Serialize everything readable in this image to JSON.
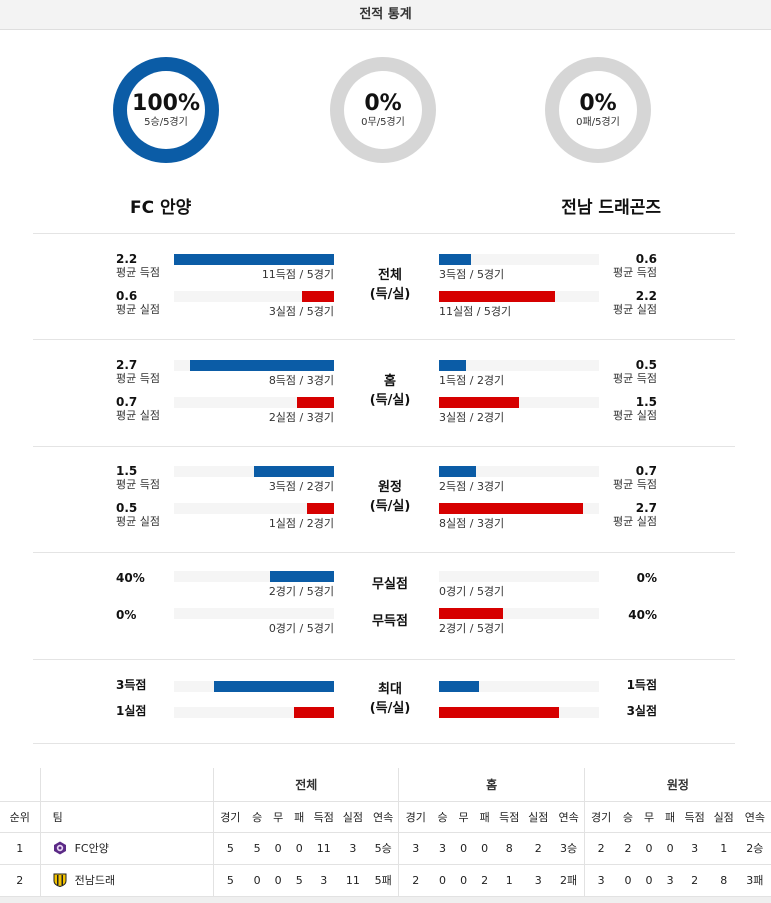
{
  "header": {
    "title": "전적 통계"
  },
  "summary": [
    {
      "pct": "100%",
      "sub": "5승/5경기",
      "fraction": 1.0,
      "color": "#0b5ca6"
    },
    {
      "pct": "0%",
      "sub": "0무/5경기",
      "fraction": 0.0,
      "color": "#0b5ca6"
    },
    {
      "pct": "0%",
      "sub": "0패/5경기",
      "fraction": 0.0,
      "color": "#0b5ca6"
    }
  ],
  "teams": {
    "home": "FC 안양",
    "away": "전남 드래곤즈"
  },
  "colors": {
    "blue": "#0b5ca6",
    "red": "#d60000",
    "track": "#f5f5f5",
    "ring": "#d6d6d6"
  },
  "sections": [
    {
      "center": [
        "전체",
        "(득/실)"
      ],
      "rows": [
        {
          "lval": "2.2",
          "llab": "평균 득점",
          "lbar": "11득점 / 5경기",
          "lfrac": 1.0,
          "lcolor": "blue",
          "rval": "0.6",
          "rlab": "평균 득점",
          "rbar": "3득점 / 5경기",
          "rfrac": 0.2,
          "rcolor": "blue"
        },
        {
          "lval": "0.6",
          "llab": "평균 실점",
          "lbar": "3실점 / 5경기",
          "lfrac": 0.2,
          "lcolor": "red",
          "rval": "2.2",
          "rlab": "평균 실점",
          "rbar": "11실점 / 5경기",
          "rfrac": 0.725,
          "rcolor": "red"
        }
      ]
    },
    {
      "center": [
        "홈",
        "(득/실)"
      ],
      "rows": [
        {
          "lval": "2.7",
          "llab": "평균 득점",
          "lbar": "8득점 / 3경기",
          "lfrac": 0.9,
          "lcolor": "blue",
          "rval": "0.5",
          "rlab": "평균 득점",
          "rbar": "1득점 / 2경기",
          "rfrac": 0.17,
          "rcolor": "blue"
        },
        {
          "lval": "0.7",
          "llab": "평균 실점",
          "lbar": "2실점 / 3경기",
          "lfrac": 0.23,
          "lcolor": "red",
          "rval": "1.5",
          "rlab": "평균 실점",
          "rbar": "3실점 / 2경기",
          "rfrac": 0.5,
          "rcolor": "red"
        }
      ]
    },
    {
      "center": [
        "원정",
        "(득/실)"
      ],
      "rows": [
        {
          "lval": "1.5",
          "llab": "평균 득점",
          "lbar": "3득점 / 2경기",
          "lfrac": 0.5,
          "lcolor": "blue",
          "rval": "0.7",
          "rlab": "평균 득점",
          "rbar": "2득점 / 3경기",
          "rfrac": 0.23,
          "rcolor": "blue"
        },
        {
          "lval": "0.5",
          "llab": "평균 실점",
          "lbar": "1실점 / 2경기",
          "lfrac": 0.17,
          "lcolor": "red",
          "rval": "2.7",
          "rlab": "평균 실점",
          "rbar": "8실점 / 3경기",
          "rfrac": 0.9,
          "rcolor": "red"
        }
      ]
    },
    {
      "center": [
        "무실점",
        "무득점"
      ],
      "rows": [
        {
          "lval": "40%",
          "llab": "",
          "lbar": "2경기 / 5경기",
          "lfrac": 0.4,
          "lcolor": "blue",
          "rval": "0%",
          "rlab": "",
          "rbar": "0경기 / 5경기",
          "rfrac": 0.0,
          "rcolor": "blue"
        },
        {
          "lval": "0%",
          "llab": "",
          "lbar": "0경기 / 5경기",
          "lfrac": 0.0,
          "lcolor": "red",
          "rval": "40%",
          "rlab": "",
          "rbar": "2경기 / 5경기",
          "rfrac": 0.4,
          "rcolor": "red"
        }
      ]
    },
    {
      "center": [
        "최대",
        "(득/실)"
      ],
      "rows": [
        {
          "lval": "3득점",
          "llab": "",
          "lbar": "",
          "lfrac": 0.75,
          "lcolor": "blue",
          "rval": "1득점",
          "rlab": "",
          "rbar": "",
          "rfrac": 0.25,
          "rcolor": "blue"
        },
        {
          "lval": "1실점",
          "llab": "",
          "lbar": "",
          "lfrac": 0.25,
          "lcolor": "red",
          "rval": "3실점",
          "rlab": "",
          "rbar": "",
          "rfrac": 0.75,
          "rcolor": "red"
        }
      ]
    }
  ],
  "standings": {
    "groups": [
      "전체",
      "홈",
      "원정"
    ],
    "headers": [
      "순위",
      "팀",
      "경기",
      "승",
      "무",
      "패",
      "득점",
      "실점",
      "연속",
      "경기",
      "승",
      "무",
      "패",
      "득점",
      "실점",
      "연속",
      "경기",
      "승",
      "무",
      "패",
      "득점",
      "실점",
      "연속"
    ],
    "rows": [
      {
        "rank": "1",
        "team": "FC안양",
        "logo": "anyang-logo",
        "cells": [
          "5",
          "5",
          "0",
          "0",
          "11",
          "3",
          "5승",
          "3",
          "3",
          "0",
          "0",
          "8",
          "2",
          "3승",
          "2",
          "2",
          "0",
          "0",
          "3",
          "1",
          "2승"
        ]
      },
      {
        "rank": "2",
        "team": "전남드래",
        "logo": "jeonnam-logo",
        "cells": [
          "5",
          "0",
          "0",
          "5",
          "3",
          "11",
          "5패",
          "2",
          "0",
          "0",
          "2",
          "1",
          "3",
          "2패",
          "3",
          "0",
          "0",
          "3",
          "2",
          "8",
          "3패"
        ]
      }
    ]
  }
}
